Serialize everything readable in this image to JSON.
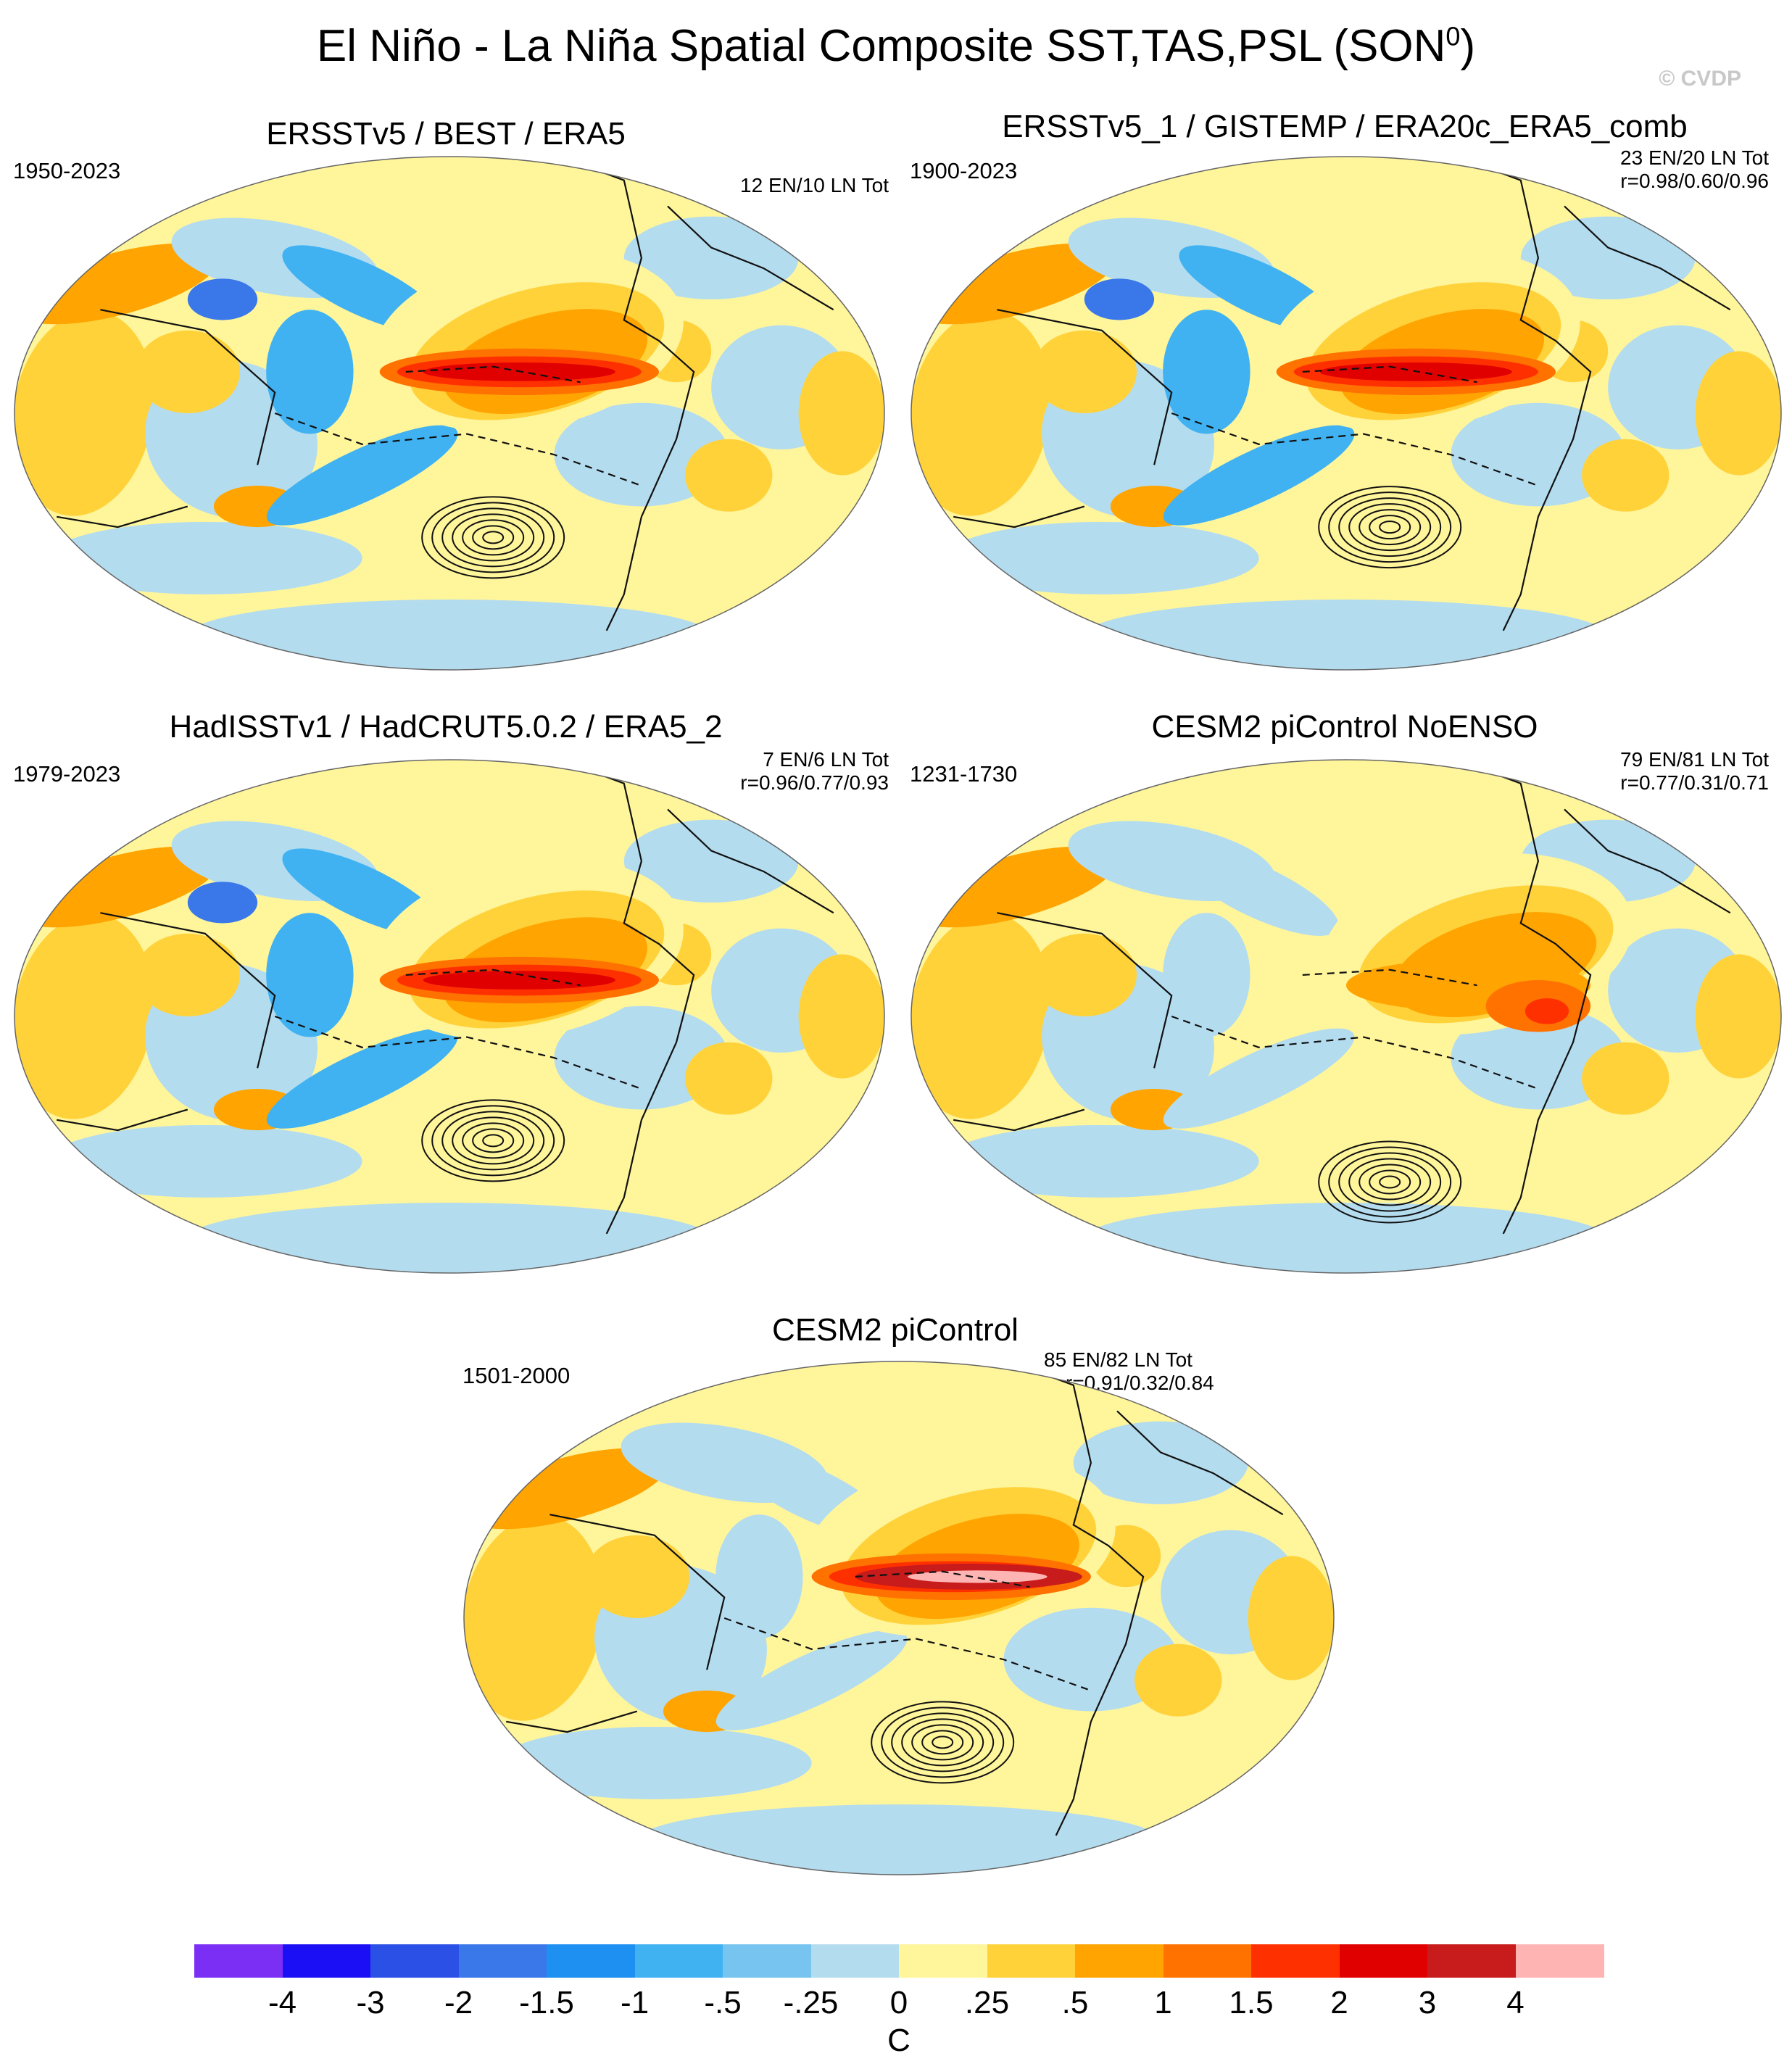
{
  "title": "El Niño - La Niña Spatial Composite SST,TAS,PSL (SON",
  "title_superscript": "0",
  "title_close": ")",
  "copyright": "© CVDP",
  "panels": [
    {
      "title": "ERSSTv5 / BEST / ERA5",
      "period": "1950-2023",
      "counts": "12 EN/10 LN Tot",
      "correlations": ""
    },
    {
      "title": "ERSSTv5_1 / GISTEMP / ERA20c_ERA5_comb",
      "period": "1900-2023",
      "counts": "23 EN/20 LN Tot",
      "correlations": "r=0.98/0.60/0.96"
    },
    {
      "title": "HadISSTv1 / HadCRUT5.0.2 / ERA5_2",
      "period": "1979-2023",
      "counts": "7 EN/6 LN Tot",
      "correlations": "r=0.96/0.77/0.93"
    },
    {
      "title": "CESM2 piControl NoENSO",
      "period": "1231-1730",
      "counts": "79 EN/81 LN Tot",
      "correlations": "r=0.77/0.31/0.71"
    },
    {
      "title": "CESM2 piControl",
      "period": "1501-2000",
      "counts": "85 EN/82 LN Tot",
      "correlations": "r=0.91/0.32/0.84"
    }
  ],
  "colorbar": {
    "unit": "C",
    "labels": [
      "-4",
      "-3",
      "-2",
      "-1.5",
      "-1",
      "-.5",
      "-.25",
      "0",
      ".25",
      ".5",
      "1",
      "1.5",
      "2",
      "3",
      "4"
    ],
    "colors": [
      "#7b2ff5",
      "#1b10f5",
      "#2b50e6",
      "#3a78ea",
      "#1e90f2",
      "#40b2f2",
      "#76c4ef",
      "#b4dcef",
      "#fff59b",
      "#ffd23a",
      "#ffa400",
      "#ff7200",
      "#ff3000",
      "#e10000",
      "#c81b1b",
      "#ffb4b4"
    ]
  }
}
